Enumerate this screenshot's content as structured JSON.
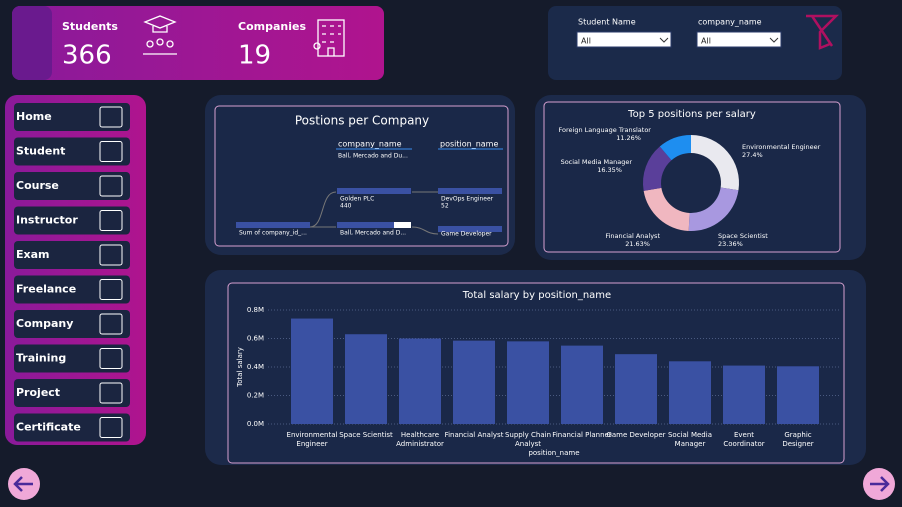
{
  "kpis": [
    {
      "label": "Students",
      "value": 366
    },
    {
      "label": "Companies",
      "value": 19
    }
  ],
  "filters": [
    {
      "label": "Student Name",
      "selection": "All"
    },
    {
      "label": "company_name",
      "selection": "All"
    }
  ],
  "nav": [
    "Home",
    "Student",
    "Course",
    "Instructor",
    "Exam",
    "Freelance",
    "Company",
    "Training",
    "Project",
    "Certificate"
  ],
  "decomposition": {
    "title": "Postions per Company",
    "levels": [
      "company_name",
      "position_name"
    ],
    "filter": "Ball, Mercado and Du...",
    "root": {
      "label": "Sum of company_id_..."
    },
    "companies": [
      {
        "label": "Golden PLC",
        "value": 440
      },
      {
        "label": "Ball, Mercado and D..."
      }
    ],
    "positions": [
      {
        "label": "DevOps Engineer",
        "value": 52
      },
      {
        "label": "Game Developer"
      }
    ]
  },
  "chart_data": [
    {
      "type": "pie",
      "title": "Top 5 positions per salary",
      "donut": true,
      "categories": [
        "Environmental Engineer",
        "Space Scientist",
        "Financial Analyst",
        "Social Media Manager",
        "Foreign Language Translator"
      ],
      "values": [
        27.4,
        23.36,
        21.63,
        16.35,
        11.26
      ],
      "value_labels": [
        "27.4%",
        "23.36%",
        "21.63%",
        "16.35%",
        "11.26%"
      ],
      "colors": [
        "#e9e9ef",
        "#a898e0",
        "#f0b7c0",
        "#5a3f9a",
        "#1e8ef0"
      ]
    },
    {
      "type": "bar",
      "title": "Total salary by position_name",
      "x_label": "position_name",
      "y_label": "Total salary",
      "categories": [
        "Environmental Engineer",
        "Space Scientist",
        "Healthcare Administrator",
        "Financial Analyst",
        "Supply Chain Analyst",
        "Financial Planner",
        "Game Developer",
        "Social Media Manager",
        "Event Coordinator",
        "Graphic Designer"
      ],
      "values": [
        740000,
        630000,
        600000,
        585000,
        580000,
        550000,
        490000,
        440000,
        410000,
        405000
      ],
      "color": "#3a51a3",
      "ylim": [
        0,
        800000
      ],
      "yticks": [
        {
          "value": 0,
          "label": "0.0M"
        },
        {
          "value": 200000,
          "label": "0.2M"
        },
        {
          "value": 400000,
          "label": "0.4M"
        },
        {
          "value": 600000,
          "label": "0.6M"
        },
        {
          "value": 800000,
          "label": "0.8M"
        }
      ],
      "grid": true
    }
  ]
}
